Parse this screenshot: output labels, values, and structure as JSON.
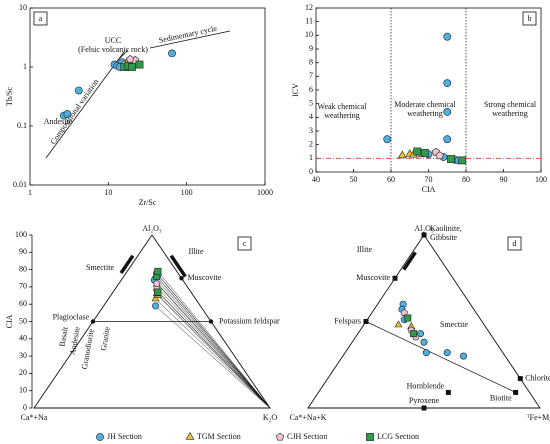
{
  "chart_data": [
    {
      "type": "scatter",
      "panel": "a",
      "log_x": true,
      "log_y": true,
      "xlabel": "Zr/Sc",
      "ylabel": "Th/Sc",
      "xlim": [
        1,
        1000
      ],
      "xticks": [
        1,
        10,
        100,
        1000
      ],
      "ylim": [
        0.01,
        10
      ],
      "yticks": [
        0.01,
        0.1,
        1,
        10
      ],
      "annotations": [
        "UCC",
        "(Felsic volcanic rock)",
        "Sedimentary cycle",
        "Compositional variation",
        "Andesite"
      ],
      "series": [
        {
          "x": [
            2.7,
            3.0,
            4.2,
            12,
            13,
            15,
            14,
            65
          ],
          "y": [
            0.15,
            0.16,
            0.4,
            1.1,
            1.05,
            1.2,
            1.0,
            1.7
          ]
        },
        {
          "x": [
            17,
            20
          ],
          "y": [
            1.15,
            1.2
          ]
        },
        {
          "x": [
            16,
            22,
            19
          ],
          "y": [
            1.1,
            1.3,
            1.35
          ]
        },
        {
          "x": [
            16,
            18,
            25,
            20
          ],
          "y": [
            1.0,
            1.05,
            1.1,
            1.0
          ]
        }
      ]
    },
    {
      "type": "scatter",
      "panel": "b",
      "xlabel": "CIA",
      "ylabel": "ICV",
      "xlim": [
        40,
        100
      ],
      "xticks": [
        40,
        50,
        60,
        70,
        80,
        90,
        100
      ],
      "ylim": [
        0,
        12
      ],
      "yticks": [
        0,
        1,
        2,
        3,
        4,
        5,
        6,
        7,
        8,
        9,
        10,
        11,
        12
      ],
      "vlines": [
        60,
        80
      ],
      "hline": 1,
      "hline_color": "#e0303a",
      "annotations": [
        [
          "Weak chemical",
          "weathering"
        ],
        [
          "Moderate chemical",
          "weathering"
        ],
        [
          "Strong chemical",
          "weathering"
        ]
      ],
      "series": [
        {
          "x": [
            59,
            75,
            75,
            75,
            75,
            74,
            77,
            78,
            70
          ],
          "y": [
            2.4,
            9.9,
            6.5,
            4.4,
            2.4,
            1.1,
            0.9,
            0.85,
            1.3
          ]
        },
        {
          "x": [
            63,
            65,
            66
          ],
          "y": [
            1.2,
            1.3,
            1.25
          ]
        },
        {
          "x": [
            68,
            72,
            73
          ],
          "y": [
            1.35,
            1.45,
            1.2
          ]
        },
        {
          "x": [
            67,
            69,
            76,
            79
          ],
          "y": [
            1.5,
            1.4,
            0.95,
            0.85
          ]
        }
      ]
    },
    {
      "type": "ternary",
      "panel": "c",
      "ylabel": "CIA",
      "ylim": [
        0,
        100
      ],
      "yticks": [
        0,
        10,
        20,
        30,
        40,
        50,
        60,
        70,
        80,
        90,
        100
      ],
      "vertices": [
        "Al₂O₃",
        "Ca*+Na",
        "K₂O"
      ],
      "references": [
        {
          "label": "Muscovite",
          "abc": [
            75,
            0,
            25
          ]
        },
        {
          "label": "Potassium feldspar",
          "abc": [
            50,
            0,
            50
          ]
        },
        {
          "label": "Plagioclase",
          "abc": [
            50,
            50,
            0
          ]
        }
      ],
      "labels": [
        "Smectite",
        "Illite",
        "Basalt",
        "Andesite",
        "Granodiorite",
        "Granite"
      ],
      "series": [
        {
          "values": [
            [
              75,
              11,
              14
            ],
            [
              76,
              10,
              14
            ],
            [
              77,
              9,
              14
            ],
            [
              59,
              19,
              22
            ],
            [
              74,
              12,
              14
            ],
            [
              78,
              9,
              13
            ]
          ]
        },
        {
          "values": [
            [
              63,
              17,
              20
            ],
            [
              65,
              15,
              20
            ],
            [
              66,
              15,
              19
            ]
          ]
        },
        {
          "values": [
            [
              68,
              14,
              18
            ],
            [
              70,
              13,
              17
            ],
            [
              72,
              12,
              16
            ]
          ]
        },
        {
          "values": [
            [
              67,
              14,
              19
            ],
            [
              76,
              10,
              14
            ],
            [
              79,
              8,
              13
            ]
          ]
        }
      ]
    },
    {
      "type": "ternary",
      "panel": "d",
      "vertices": [
        "Al₂O₃",
        "Ca*+Na+K",
        "ᵀFe+Mg"
      ],
      "references": [
        {
          "label": [
            "Kaolinite,",
            "Gibbsite"
          ],
          "abc": [
            100,
            0,
            0
          ]
        },
        {
          "label": "Muscovite",
          "abc": [
            75,
            25,
            0
          ]
        },
        {
          "label": "Felspars",
          "abc": [
            50,
            50,
            0
          ]
        },
        {
          "label": "Chlorite",
          "abc": [
            17,
            0,
            83
          ]
        },
        {
          "label": "Biotite",
          "abc": [
            9,
            6,
            85
          ]
        },
        {
          "label": "Hornblende",
          "abc": [
            9,
            35,
            56
          ]
        },
        {
          "label": "Pyroxene",
          "abc": [
            0,
            50,
            50
          ]
        }
      ],
      "labels": [
        "Illite",
        "Smectite"
      ],
      "series": [
        {
          "values": [
            [
              60,
              29,
              11
            ],
            [
              57,
              31,
              12
            ],
            [
              51,
              33,
              16
            ],
            [
              43,
              30,
              27
            ],
            [
              38,
              31,
              31
            ],
            [
              32,
              33,
              35
            ],
            [
              32,
              24,
              44
            ],
            [
              30,
              18,
              52
            ]
          ]
        },
        {
          "values": [
            [
              48,
              37,
              15
            ],
            [
              47,
              32,
              21
            ]
          ]
        },
        {
          "values": [
            [
              55,
              31,
              14
            ],
            [
              45,
              33,
              22
            ],
            [
              41,
              33,
              26
            ]
          ]
        },
        {
          "values": [
            [
              52,
              31,
              17
            ],
            [
              43,
              33,
              24
            ]
          ]
        }
      ]
    }
  ],
  "legend": [
    {
      "name": "JH Section",
      "marker": "circle",
      "color": "#4cb0e0"
    },
    {
      "name": "TGM Section",
      "marker": "triangle",
      "color": "#e8c330"
    },
    {
      "name": "CJH Section",
      "marker": "pentagon",
      "color": "#f2c4d6"
    },
    {
      "name": "LCG Section",
      "marker": "square",
      "color": "#2f9a4a"
    }
  ]
}
